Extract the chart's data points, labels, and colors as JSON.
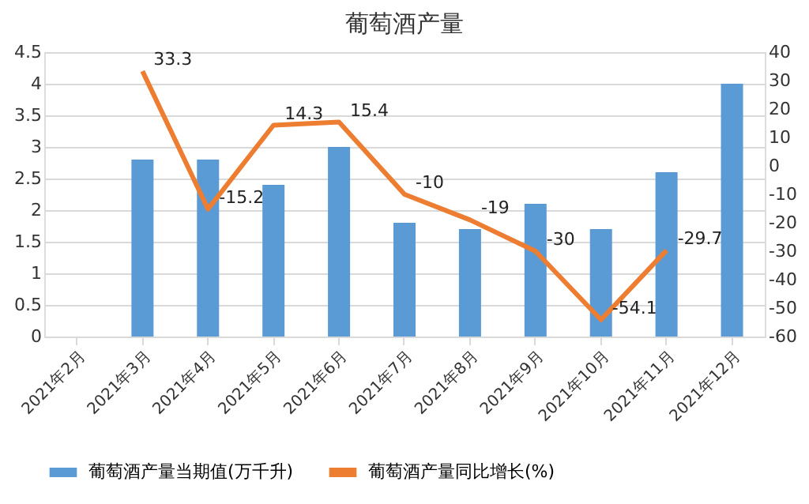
{
  "chart_data": {
    "type": "bar",
    "title": "葡萄酒产量",
    "categories": [
      "2021年2月",
      "2021年3月",
      "2021年4月",
      "2021年5月",
      "2021年6月",
      "2021年7月",
      "2021年8月",
      "2021年9月",
      "2021年10月",
      "2021年11月",
      "2021年12月"
    ],
    "series": [
      {
        "name": "葡萄酒产量当期值(万千升)",
        "color": "#5b9bd5",
        "values": [
          null,
          2.8,
          2.8,
          2.4,
          3.0,
          1.8,
          1.7,
          2.1,
          1.7,
          2.6,
          4.0
        ]
      },
      {
        "name": "葡萄酒产量同比增长(%)",
        "type": "line",
        "axis": "y2",
        "color": "#ed7d31",
        "values": [
          null,
          33.3,
          -15.2,
          14.3,
          15.4,
          -10,
          -19,
          -30,
          -54.1,
          -29.7,
          null
        ],
        "value_labels": [
          null,
          "33.3",
          "-15.2",
          "14.3",
          "15.4",
          "-10",
          "-19",
          "-30",
          "-54.1",
          "-29.7",
          null
        ]
      }
    ],
    "ylim": [
      0,
      4.5
    ],
    "yticks": [
      0,
      0.5,
      1,
      1.5,
      2,
      2.5,
      3,
      3.5,
      4,
      4.5
    ],
    "y2lim": [
      -60,
      40
    ],
    "y2ticks": [
      -60,
      -50,
      -40,
      -30,
      -20,
      -10,
      0,
      10,
      20,
      30,
      40
    ],
    "grid": "y",
    "legend": "bottom"
  }
}
